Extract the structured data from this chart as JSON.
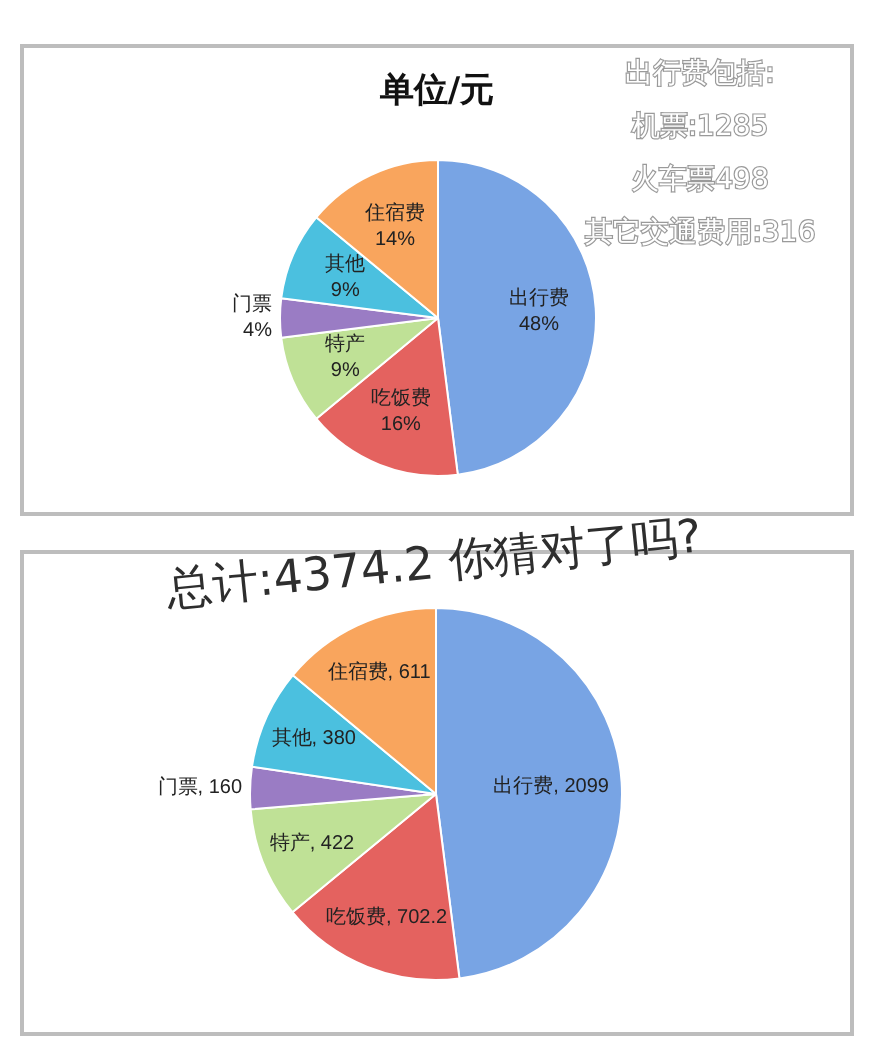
{
  "chart_data": [
    {
      "type": "pie",
      "title": "单位/元",
      "categories": [
        "出行费",
        "吃饭费",
        "特产",
        "门票",
        "其他",
        "住宿费"
      ],
      "values": [
        48,
        16,
        9,
        4,
        9,
        14
      ],
      "colors": [
        "#78a4e4",
        "#e4625f",
        "#bfe196",
        "#9a7cc4",
        "#4bc0df",
        "#f9a55d"
      ],
      "value_labels": [
        "48%",
        "16%",
        "9%",
        "4%",
        "9%",
        "14%"
      ],
      "annotations": [
        "出行费包括:",
        "机票:1285",
        "火车票498",
        "其它交通费用:316"
      ]
    },
    {
      "type": "pie",
      "categories": [
        "出行费",
        "吃饭费",
        "特产",
        "门票",
        "其他",
        "住宿费"
      ],
      "values": [
        2099,
        702.2,
        422,
        160,
        380,
        611
      ],
      "colors": [
        "#78a4e4",
        "#e4625f",
        "#bfe196",
        "#9a7cc4",
        "#4bc0df",
        "#f9a55d"
      ],
      "value_labels": [
        ", 2099",
        ", 702.2",
        ", 422",
        ", 160",
        ", 380",
        ", 611"
      ],
      "annotations": [
        "总计:4374.2 你猜对了吗?"
      ]
    }
  ]
}
